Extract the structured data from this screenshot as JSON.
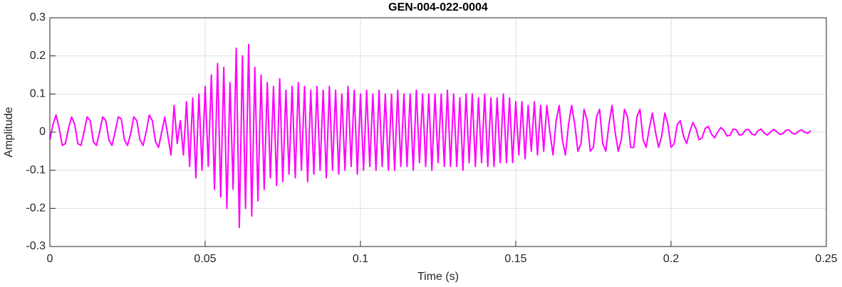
{
  "chart_data": {
    "type": "line",
    "title": "GEN-004-022-0004",
    "xlabel": "Time (s)",
    "ylabel": "Amplitude",
    "color": "#ff00ff",
    "grid": true,
    "xlim": [
      0,
      0.25
    ],
    "xticks": [
      0,
      0.05,
      0.1,
      0.15,
      0.2,
      0.25
    ],
    "ylim": [
      -0.3,
      0.3
    ],
    "yticks": [
      -0.3,
      -0.2,
      -0.1,
      0,
      0.1,
      0.2,
      0.3
    ],
    "x": [
      0,
      0.001,
      0.002,
      0.003,
      0.004,
      0.005,
      0.006,
      0.007,
      0.008,
      0.009,
      0.01,
      0.011,
      0.012,
      0.013,
      0.014,
      0.015,
      0.016,
      0.017,
      0.018,
      0.019,
      0.02,
      0.021,
      0.022,
      0.023,
      0.024,
      0.025,
      0.026,
      0.027,
      0.028,
      0.029,
      0.03,
      0.031,
      0.032,
      0.033,
      0.034,
      0.035,
      0.036,
      0.037,
      0.038,
      0.039,
      0.04,
      0.041,
      0.042,
      0.043,
      0.044,
      0.045,
      0.046,
      0.047,
      0.048,
      0.049,
      0.05,
      0.051,
      0.052,
      0.053,
      0.054,
      0.055,
      0.056,
      0.057,
      0.058,
      0.059,
      0.06,
      0.061,
      0.062,
      0.063,
      0.064,
      0.065,
      0.066,
      0.067,
      0.068,
      0.069,
      0.07,
      0.071,
      0.072,
      0.073,
      0.074,
      0.075,
      0.076,
      0.077,
      0.078,
      0.079,
      0.08,
      0.081,
      0.082,
      0.083,
      0.084,
      0.085,
      0.086,
      0.087,
      0.088,
      0.089,
      0.09,
      0.091,
      0.092,
      0.093,
      0.094,
      0.095,
      0.096,
      0.097,
      0.098,
      0.099,
      0.1,
      0.101,
      0.102,
      0.103,
      0.104,
      0.105,
      0.106,
      0.107,
      0.108,
      0.109,
      0.11,
      0.111,
      0.112,
      0.113,
      0.114,
      0.115,
      0.116,
      0.117,
      0.118,
      0.119,
      0.12,
      0.121,
      0.122,
      0.123,
      0.124,
      0.125,
      0.126,
      0.127,
      0.128,
      0.129,
      0.13,
      0.131,
      0.132,
      0.133,
      0.134,
      0.135,
      0.136,
      0.137,
      0.138,
      0.139,
      0.14,
      0.141,
      0.142,
      0.143,
      0.144,
      0.145,
      0.146,
      0.147,
      0.148,
      0.149,
      0.15,
      0.151,
      0.152,
      0.153,
      0.154,
      0.155,
      0.156,
      0.157,
      0.158,
      0.159,
      0.16,
      0.161,
      0.162,
      0.163,
      0.164,
      0.165,
      0.166,
      0.167,
      0.168,
      0.169,
      0.17,
      0.171,
      0.172,
      0.173,
      0.174,
      0.175,
      0.176,
      0.177,
      0.178,
      0.179,
      0.18,
      0.181,
      0.182,
      0.183,
      0.184,
      0.185,
      0.186,
      0.187,
      0.188,
      0.189,
      0.19,
      0.191,
      0.192,
      0.193,
      0.194,
      0.195,
      0.196,
      0.197,
      0.198,
      0.199,
      0.2,
      0.201,
      0.202,
      0.203,
      0.204,
      0.205,
      0.206,
      0.207,
      0.208,
      0.209,
      0.21,
      0.211,
      0.212,
      0.213,
      0.214,
      0.215,
      0.216,
      0.217,
      0.218,
      0.219,
      0.22,
      0.221,
      0.222,
      0.223,
      0.224,
      0.225,
      0.226,
      0.227,
      0.228,
      0.229,
      0.23,
      0.231,
      0.232,
      0.233,
      0.234,
      0.235,
      0.236,
      0.237,
      0.238,
      0.239,
      0.24,
      0.241,
      0.242,
      0.243,
      0.244,
      0.245
    ],
    "values": [
      -0.02,
      0.02,
      0.045,
      0.01,
      -0.035,
      -0.03,
      0.01,
      0.04,
      0.02,
      -0.03,
      -0.035,
      0,
      0.04,
      0.03,
      -0.025,
      -0.035,
      0,
      0.04,
      0.03,
      -0.02,
      -0.035,
      0,
      0.04,
      0.035,
      -0.02,
      -0.035,
      -0.005,
      0.04,
      0.03,
      -0.02,
      -0.035,
      0,
      0.045,
      0.03,
      -0.025,
      -0.04,
      0,
      0.04,
      -0.01,
      -0.06,
      0.07,
      -0.03,
      0.03,
      -0.06,
      0.08,
      -0.09,
      0.09,
      -0.12,
      0.1,
      -0.1,
      0.12,
      -0.09,
      0.15,
      -0.15,
      0.18,
      -0.17,
      0.17,
      -0.2,
      0.13,
      -0.15,
      0.22,
      -0.25,
      0.2,
      -0.2,
      0.23,
      -0.22,
      0.17,
      -0.18,
      0.15,
      -0.15,
      0.13,
      -0.12,
      0.12,
      -0.14,
      0.14,
      -0.13,
      0.11,
      -0.11,
      0.12,
      -0.12,
      0.13,
      -0.1,
      0.12,
      -0.13,
      0.11,
      -0.11,
      0.12,
      -0.1,
      0.11,
      -0.12,
      0.12,
      -0.1,
      0.11,
      -0.11,
      0.1,
      -0.1,
      0.12,
      -0.09,
      0.11,
      -0.11,
      0.1,
      -0.1,
      0.11,
      -0.09,
      0.1,
      -0.1,
      0.11,
      -0.09,
      0.1,
      -0.1,
      0.1,
      -0.1,
      0.11,
      -0.09,
      0.1,
      -0.09,
      0.1,
      -0.1,
      0.11,
      -0.08,
      0.1,
      -0.09,
      0.1,
      -0.1,
      0.1,
      -0.08,
      0.1,
      -0.09,
      0.11,
      -0.09,
      0.1,
      -0.09,
      0.09,
      -0.1,
      0.1,
      -0.08,
      0.1,
      -0.09,
      0.09,
      -0.08,
      0.1,
      -0.09,
      0.09,
      -0.09,
      0.09,
      -0.08,
      0.1,
      -0.08,
      0.09,
      -0.08,
      0.08,
      -0.06,
      0.08,
      -0.07,
      0.07,
      -0.05,
      0.08,
      -0.06,
      0.07,
      -0.05,
      0.07,
      0,
      -0.06,
      0.03,
      0.07,
      -0.02,
      -0.06,
      0.02,
      0.07,
      0.02,
      -0.05,
      -0.03,
      0.06,
      0.03,
      -0.05,
      -0.04,
      0.04,
      0.06,
      -0.03,
      -0.05,
      0.02,
      0.07,
      0,
      -0.05,
      -0.02,
      0.06,
      0.04,
      -0.04,
      -0.04,
      0.04,
      0.06,
      -0.02,
      -0.04,
      0.01,
      0.05,
      0,
      -0.04,
      -0.01,
      0.05,
      0.02,
      -0.04,
      -0.03,
      0.02,
      0.03,
      -0.01,
      -0.03,
      0,
      0.025,
      0.01,
      -0.02,
      -0.015,
      0.01,
      0.015,
      -0.005,
      -0.015,
      0,
      0.012,
      0.005,
      -0.01,
      -0.008,
      0.008,
      0.006,
      -0.008,
      -0.006,
      0.006,
      0.007,
      -0.005,
      -0.008,
      0.004,
      0.008,
      -0.002,
      -0.008,
      0,
      0.007,
      0.002,
      -0.006,
      -0.004,
      0.005,
      0.006,
      -0.003,
      -0.005,
      0.002,
      0.006,
      0,
      -0.003,
      0.004
    ]
  }
}
